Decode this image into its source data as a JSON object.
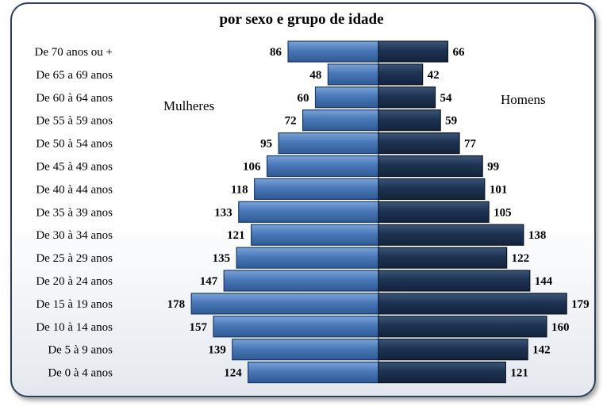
{
  "chart_data": {
    "type": "bar",
    "title": "por sexo e grupo de idade",
    "categories": [
      "De 70 anos ou +",
      "De 65 a 69 anos",
      "De 60 à 64 anos",
      "De 55 à 59 anos",
      "De 50 à 54 anos",
      "De 45 à 49 anos",
      "De 40 à 44 anos",
      "De 35 à 39 anos",
      "De 30 à 34 anos",
      "De 25 à 29 anos",
      "De 20 à 24 anos",
      "De 15 à 19 anos",
      "De 10 à 14 anos",
      "De 5 à 9 anos",
      "De 0 à 4 anos"
    ],
    "series": [
      {
        "name": "Mulheres",
        "values": [
          86,
          48,
          60,
          72,
          95,
          106,
          118,
          133,
          121,
          135,
          147,
          178,
          157,
          139,
          124
        ],
        "color": "#4a78b8"
      },
      {
        "name": "Homens",
        "values": [
          66,
          42,
          54,
          59,
          77,
          99,
          101,
          105,
          138,
          122,
          144,
          179,
          160,
          142,
          121
        ],
        "color": "#1e3352"
      }
    ]
  }
}
